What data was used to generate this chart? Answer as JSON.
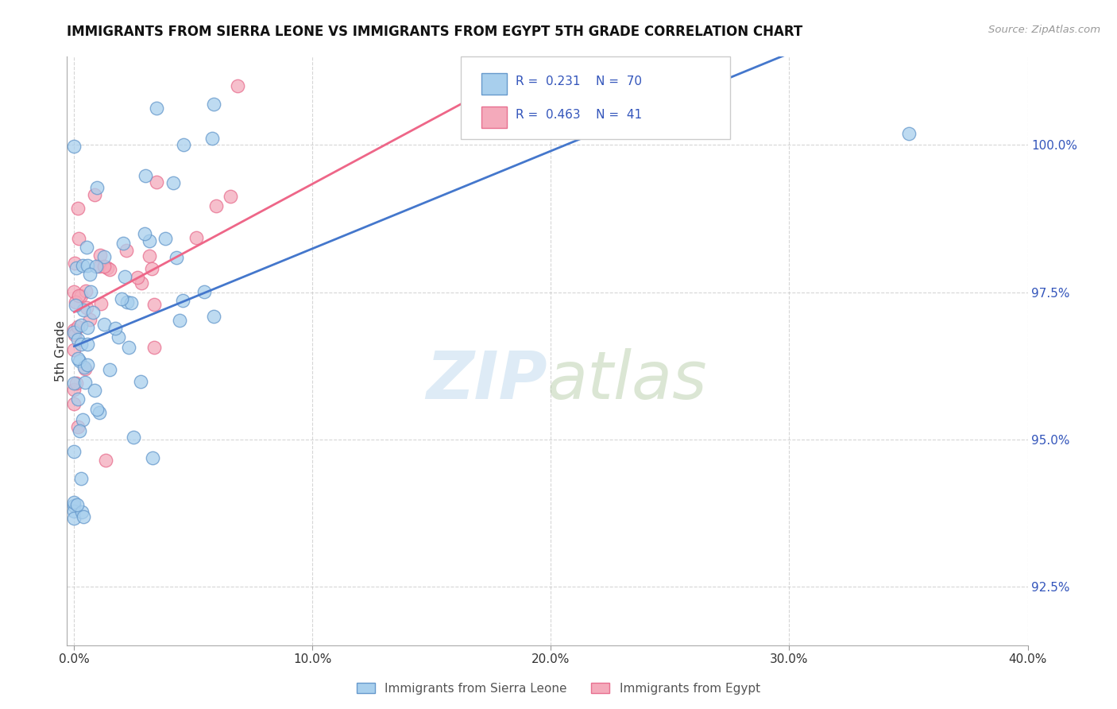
{
  "title": "IMMIGRANTS FROM SIERRA LEONE VS IMMIGRANTS FROM EGYPT 5TH GRADE CORRELATION CHART",
  "source_text": "Source: ZipAtlas.com",
  "ylabel": "5th Grade",
  "xlim": [
    -0.3,
    40.0
  ],
  "ylim": [
    91.5,
    101.5
  ],
  "yticks": [
    92.5,
    95.0,
    97.5,
    100.0
  ],
  "ytick_labels": [
    "92.5%",
    "95.0%",
    "97.5%",
    "100.0%"
  ],
  "xticks": [
    0.0,
    10.0,
    20.0,
    30.0,
    40.0
  ],
  "xtick_labels": [
    "0.0%",
    "10.0%",
    "20.0%",
    "30.0%",
    "40.0%"
  ],
  "legend_labels": [
    "Immigrants from Sierra Leone",
    "Immigrants from Egypt"
  ],
  "r_sierra": 0.231,
  "n_sierra": 70,
  "r_egypt": 0.463,
  "n_egypt": 41,
  "color_sierra_fill": "#A8CFED",
  "color_egypt_fill": "#F4AABB",
  "color_sierra_edge": "#6699CC",
  "color_egypt_edge": "#E87090",
  "color_sierra_line": "#4477CC",
  "color_egypt_line": "#EE6688",
  "watermark_color": "#C8DFF0",
  "background_color": "#ffffff",
  "grid_color": "#CCCCCC",
  "tick_color": "#3355BB",
  "legend_box_edge": "#CCCCCC",
  "sl_trend_x0": 0.0,
  "sl_trend_y0": 96.3,
  "sl_trend_x1": 8.0,
  "sl_trend_y1": 99.2,
  "eg_trend_x0": 0.0,
  "eg_trend_y0": 97.0,
  "eg_trend_x1": 8.0,
  "eg_trend_y1": 99.0
}
